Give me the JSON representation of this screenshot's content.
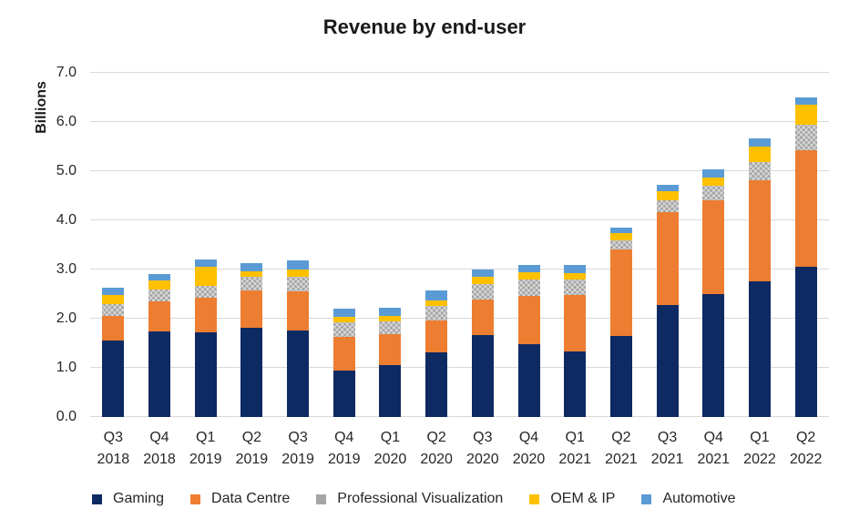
{
  "title": "Revenue by end-user",
  "y_axis": {
    "label": "Billions",
    "ticks": [
      "0.0",
      "1.0",
      "2.0",
      "3.0",
      "4.0",
      "5.0",
      "6.0",
      "7.0"
    ]
  },
  "colors": {
    "gaming": "#0e2a63",
    "data_centre": "#ed7d31",
    "professional_visualization": "#a6a6a6",
    "oem_ip": "#ffc000",
    "automotive": "#5b9bd5",
    "gridline": "#d9d9d9",
    "text": "#262626",
    "title_text": "#1a1a1a"
  },
  "chart_data": {
    "type": "bar",
    "stacked": true,
    "title": "Revenue by end-user",
    "xlabel": "",
    "ylabel": "Billions",
    "ylim": [
      0,
      7
    ],
    "ytick_step": 1.0,
    "grid": true,
    "legend_position": "bottom",
    "categories": [
      "Q3 2018",
      "Q4 2018",
      "Q1 2019",
      "Q2 2019",
      "Q3 2019",
      "Q4 2019",
      "Q1 2020",
      "Q2 2020",
      "Q3 2020",
      "Q4 2020",
      "Q1 2021",
      "Q2 2021",
      "Q3 2021",
      "Q4 2021",
      "Q1 2022",
      "Q2 2022"
    ],
    "series": [
      {
        "name": "Gaming",
        "color": "#0e2a63",
        "pattern": "solid",
        "values": [
          1.56,
          1.74,
          1.72,
          1.81,
          1.76,
          0.95,
          1.05,
          1.31,
          1.66,
          1.49,
          1.34,
          1.65,
          2.27,
          2.5,
          2.76,
          3.06
        ]
      },
      {
        "name": "Data Centre",
        "color": "#ed7d31",
        "pattern": "solid",
        "values": [
          0.5,
          0.61,
          0.7,
          0.76,
          0.79,
          0.68,
          0.63,
          0.66,
          0.73,
          0.97,
          1.14,
          1.75,
          1.9,
          1.9,
          2.05,
          2.37
        ]
      },
      {
        "name": "Professional Visualization",
        "color": "#a6a6a6",
        "pattern": "dotted",
        "values": [
          0.24,
          0.25,
          0.25,
          0.28,
          0.31,
          0.29,
          0.27,
          0.29,
          0.32,
          0.33,
          0.31,
          0.2,
          0.24,
          0.31,
          0.37,
          0.52
        ]
      },
      {
        "name": "OEM & IP",
        "color": "#ffc000",
        "pattern": "solid",
        "values": [
          0.19,
          0.18,
          0.39,
          0.12,
          0.15,
          0.12,
          0.1,
          0.11,
          0.14,
          0.15,
          0.14,
          0.15,
          0.19,
          0.17,
          0.33,
          0.41
        ]
      },
      {
        "name": "Automotive",
        "color": "#5b9bd5",
        "pattern": "solid",
        "values": [
          0.14,
          0.13,
          0.15,
          0.16,
          0.17,
          0.16,
          0.17,
          0.21,
          0.16,
          0.16,
          0.16,
          0.11,
          0.13,
          0.15,
          0.15,
          0.15
        ]
      }
    ]
  }
}
